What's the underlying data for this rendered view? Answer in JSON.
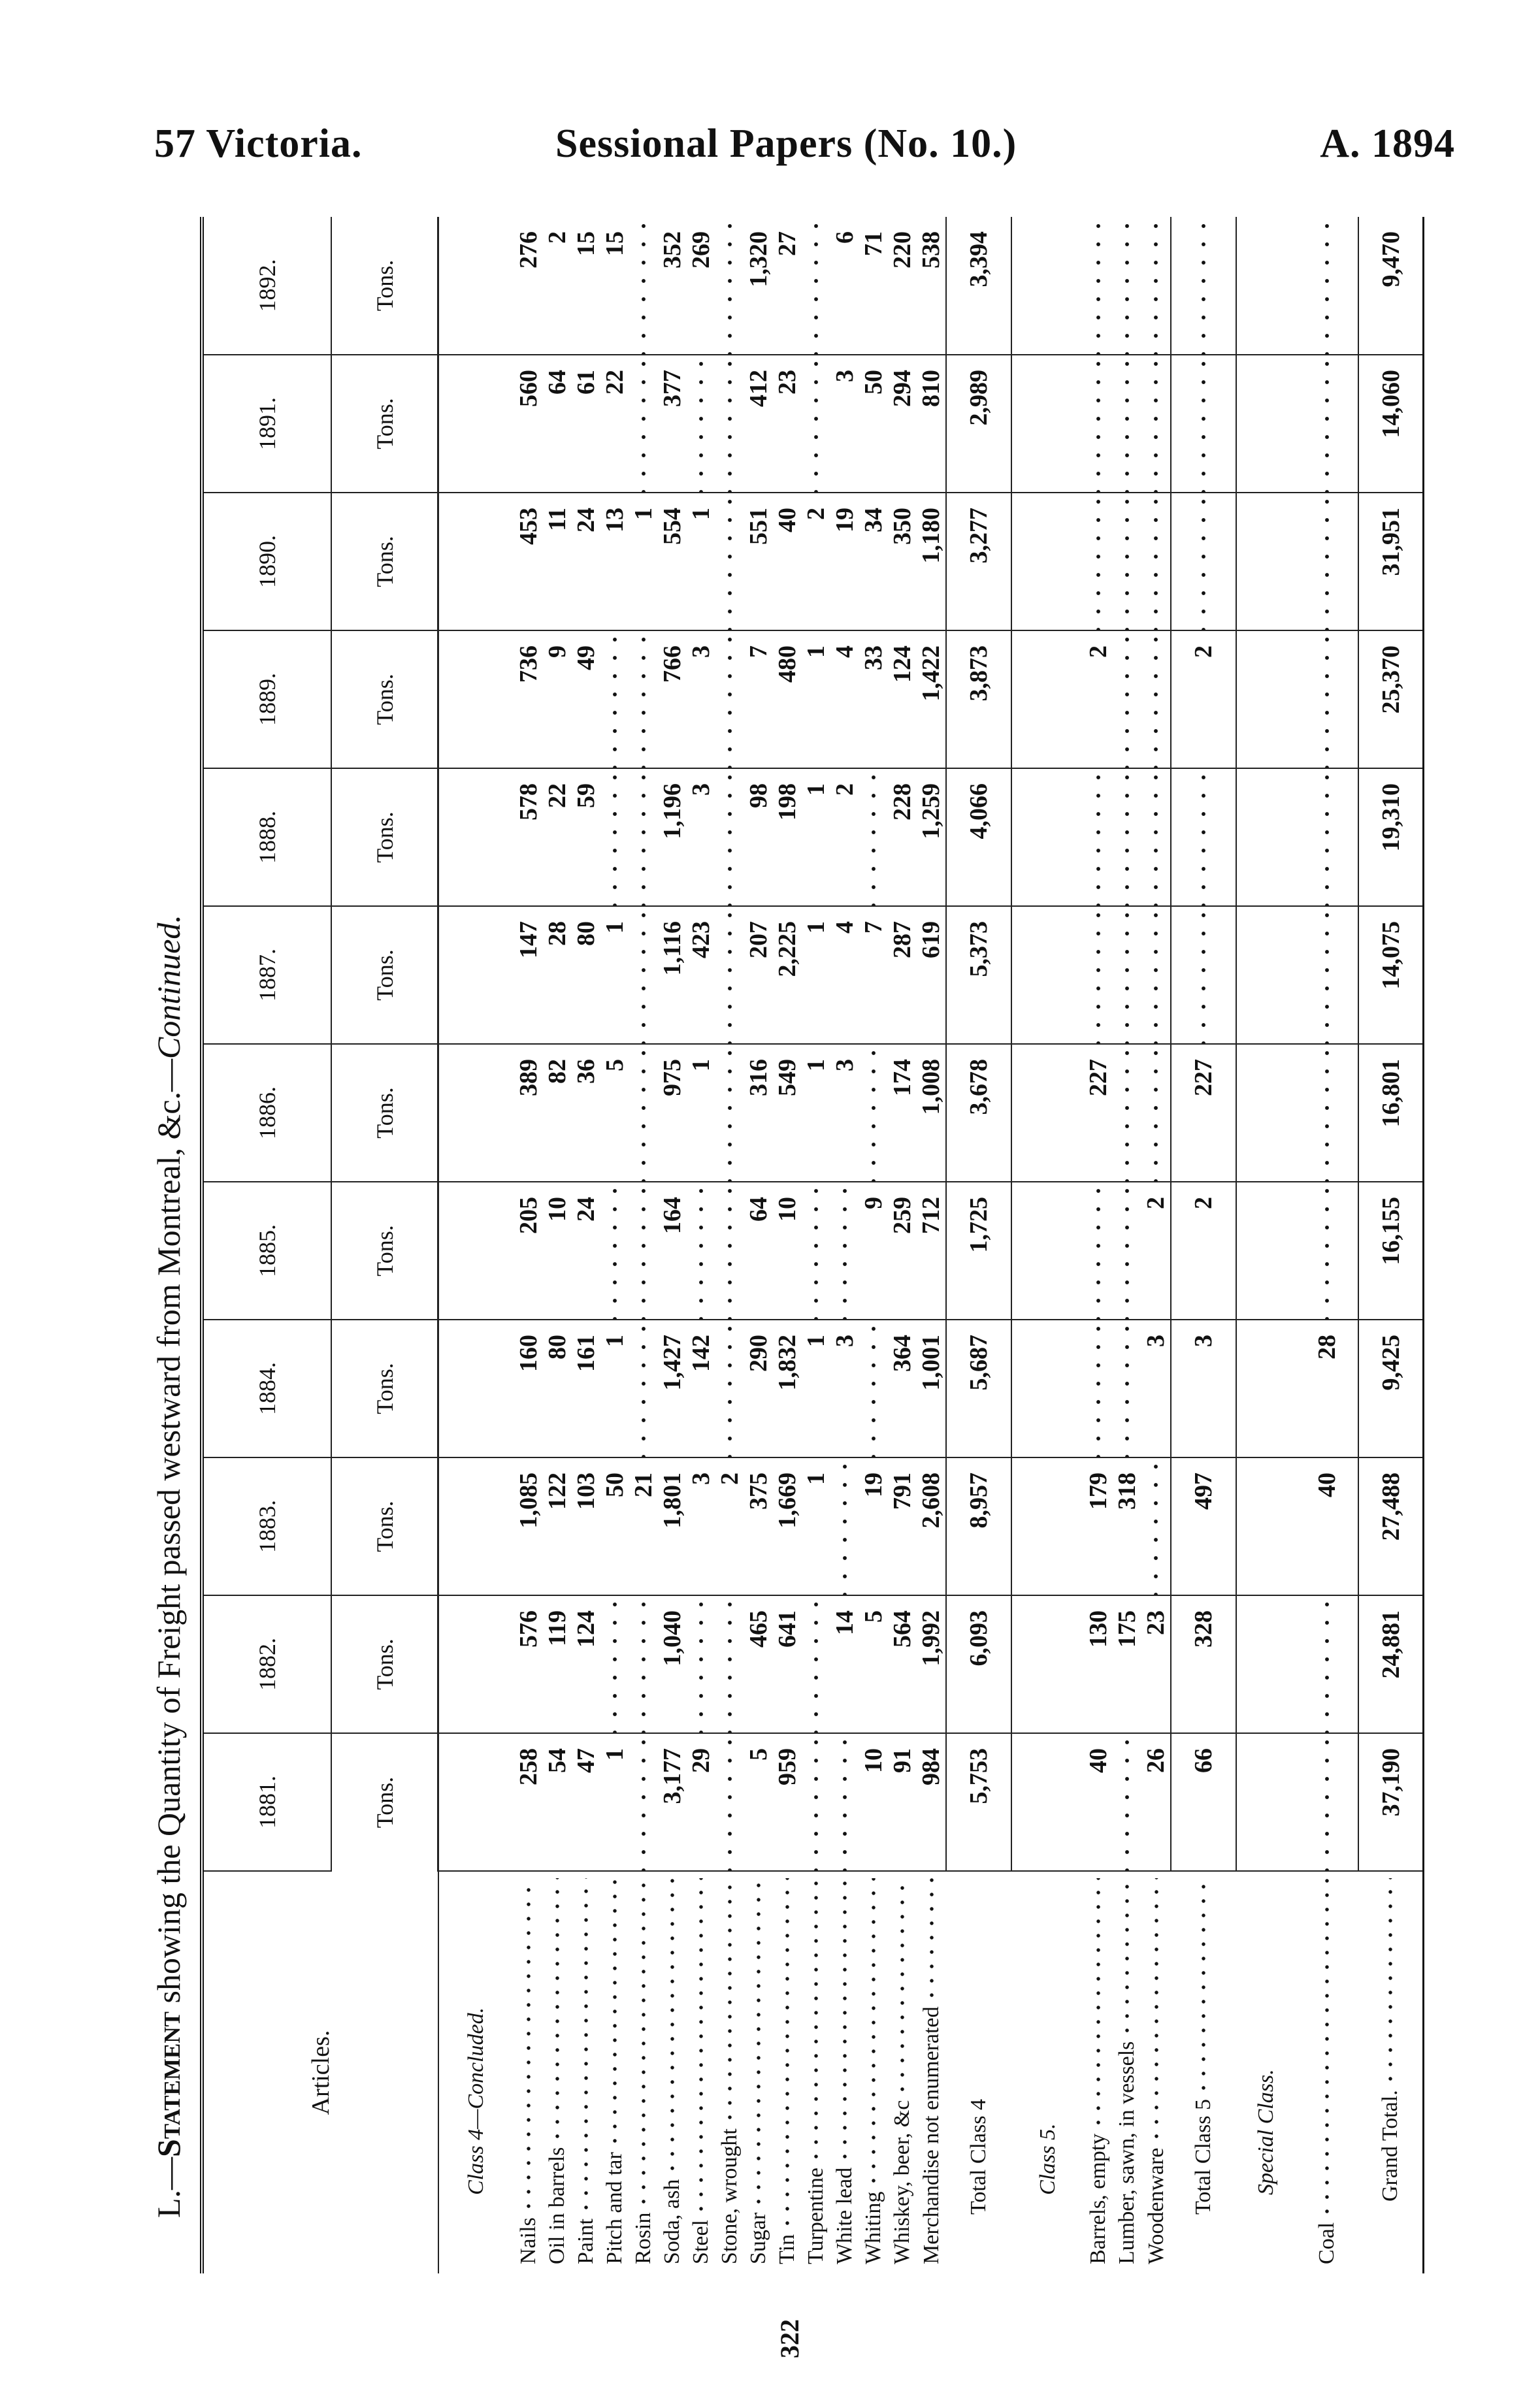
{
  "page_header": {
    "left": "57 Victoria.",
    "center": "Sessional Papers (No. 10.)",
    "right": "A. 1894"
  },
  "title": {
    "prefix": "L.—",
    "statement": "Statement",
    "body": " showing the Quantity of Freight passed westward from Montreal, &c.—",
    "continued": "Continued."
  },
  "page_number": "322",
  "table": {
    "articles_header": "Articles.",
    "years": [
      "1881.",
      "1882.",
      "1883.",
      "1884.",
      "1885.",
      "1886.",
      "1887.",
      "1888.",
      "1889.",
      "1890.",
      "1891.",
      "1892."
    ],
    "unit": "Tons.",
    "class4_label": "Class 4—Concluded.",
    "class4_rows": [
      {
        "label": "Nails",
        "values": [
          "258",
          "576",
          "1,085",
          "160",
          "205",
          "389",
          "147",
          "578",
          "736",
          "453",
          "560",
          "276"
        ]
      },
      {
        "label": "Oil in barrels",
        "values": [
          "54",
          "119",
          "122",
          "80",
          "10",
          "82",
          "28",
          "22",
          "9",
          "11",
          "64",
          "2"
        ]
      },
      {
        "label": "Paint",
        "values": [
          "47",
          "124",
          "103",
          "161",
          "24",
          "36",
          "80",
          "59",
          "49",
          "24",
          "61",
          "15"
        ]
      },
      {
        "label": "Pitch and tar",
        "values": [
          "1",
          "",
          "50",
          "1",
          "",
          "5",
          "1",
          "",
          "",
          "13",
          "22",
          "15"
        ]
      },
      {
        "label": "Rosin",
        "values": [
          "",
          "",
          "21",
          "",
          "",
          "",
          "",
          "",
          "",
          "1",
          "",
          ""
        ]
      },
      {
        "label": "Soda, ash",
        "values": [
          "3,177",
          "1,040",
          "1,801",
          "1,427",
          "164",
          "975",
          "1,116",
          "1,196",
          "766",
          "554",
          "377",
          "352"
        ]
      },
      {
        "label": "Steel",
        "values": [
          "29",
          "",
          "3",
          "142",
          "",
          "1",
          "423",
          "3",
          "3",
          "1",
          "",
          "269"
        ]
      },
      {
        "label": "Stone, wrought",
        "values": [
          "",
          "",
          "2",
          "",
          "",
          "",
          "",
          "",
          "",
          "",
          "",
          ""
        ]
      },
      {
        "label": "Sugar",
        "values": [
          "5",
          "465",
          "375",
          "290",
          "64",
          "316",
          "207",
          "98",
          "7",
          "551",
          "412",
          "1,320"
        ]
      },
      {
        "label": "Tin",
        "values": [
          "959",
          "641",
          "1,669",
          "1,832",
          "10",
          "549",
          "2,225",
          "198",
          "480",
          "40",
          "23",
          "27"
        ]
      },
      {
        "label": "Turpentine",
        "values": [
          "",
          "",
          "1",
          "1",
          "",
          "1",
          "1",
          "1",
          "1",
          "2",
          "",
          ""
        ]
      },
      {
        "label": "White lead",
        "values": [
          "",
          "14",
          "",
          "3",
          "",
          "3",
          "4",
          "2",
          "4",
          "19",
          "3",
          "6"
        ]
      },
      {
        "label": "Whiting",
        "values": [
          "10",
          "5",
          "19",
          "",
          "9",
          "",
          "7",
          "",
          "33",
          "34",
          "50",
          "71"
        ]
      },
      {
        "label": "Whiskey, beer, &c",
        "values": [
          "91",
          "564",
          "791",
          "364",
          "259",
          "174",
          "287",
          "228",
          "124",
          "350",
          "294",
          "220"
        ]
      },
      {
        "label": "Merchandise not enumerated",
        "values": [
          "984",
          "1,992",
          "2,608",
          "1,001",
          "712",
          "1,008",
          "619",
          "1,259",
          "1,422",
          "1,180",
          "810",
          "538"
        ]
      }
    ],
    "total_class4": {
      "label": "Total Class 4",
      "values": [
        "5,753",
        "6,093",
        "8,957",
        "5,687",
        "1,725",
        "3,678",
        "5,373",
        "4,066",
        "3,873",
        "3,277",
        "2,989",
        "3,394"
      ]
    },
    "class5_label": "Class 5.",
    "class5_rows": [
      {
        "label": "Barrels, empty",
        "values": [
          "40",
          "130",
          "179",
          "",
          "",
          "227",
          "",
          "",
          "2",
          "",
          "",
          ""
        ]
      },
      {
        "label": "Lumber, sawn, in vessels",
        "values": [
          "",
          "175",
          "318",
          "",
          "",
          "",
          "",
          "",
          "",
          "",
          "",
          ""
        ]
      },
      {
        "label": "Woodenware",
        "values": [
          "26",
          "23",
          "",
          "3",
          "2",
          "",
          "",
          "",
          "",
          "",
          "",
          ""
        ]
      }
    ],
    "total_class5": {
      "label": "Total Class 5",
      "values": [
        "66",
        "328",
        "497",
        "3",
        "2",
        "227",
        "",
        "",
        "2",
        "",
        "",
        ""
      ]
    },
    "special_label": "Special Class.",
    "coal": {
      "label": "Coal",
      "values": [
        "",
        "",
        "40",
        "28",
        "",
        "",
        "",
        "",
        "",
        "",
        "",
        ""
      ]
    },
    "grand_total": {
      "label": "Grand Total.",
      "values": [
        "37,190",
        "24,881",
        "27,488",
        "9,425",
        "16,155",
        "16,801",
        "14,075",
        "19,310",
        "25,370",
        "31,951",
        "14,060",
        "9,470"
      ]
    }
  }
}
